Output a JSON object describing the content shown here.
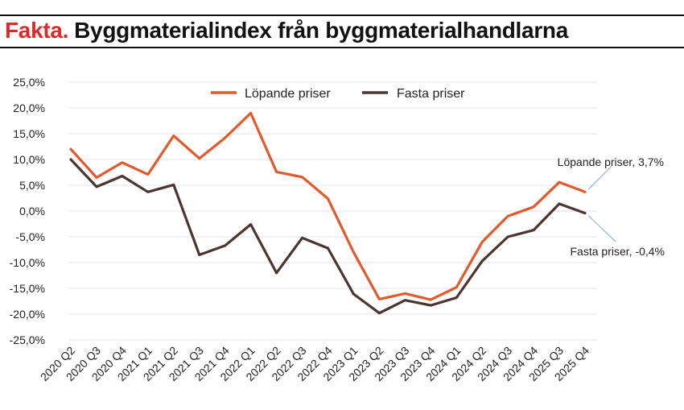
{
  "header": {
    "kicker": "Fakta.",
    "title": "Byggmaterialindex från byggmaterialhandlarna"
  },
  "colors": {
    "kicker": "#d92b2b",
    "lopande": "#e05a2b",
    "fasta": "#4a3530",
    "grid": "#dde3ec"
  },
  "chart_data": {
    "type": "line",
    "categories": [
      "2020 Q2",
      "2020 Q3",
      "2020 Q4",
      "2021 Q1",
      "2021 Q2",
      "2021 Q3",
      "2021 Q4",
      "2022 Q1",
      "2022 Q2",
      "2022 Q3",
      "2022 Q4",
      "2023 Q1",
      "2023 Q2",
      "2023 Q3",
      "2023 Q4",
      "2024 Q1",
      "2024 Q2",
      "2024 Q3",
      "2024 Q4",
      "2025 Q3",
      "2025 Q4"
    ],
    "series": [
      {
        "name": "Löpande priser",
        "color": "#e05a2b",
        "values": [
          12.0,
          6.5,
          9.4,
          7.1,
          14.6,
          10.2,
          14.2,
          19.0,
          7.6,
          6.6,
          2.4,
          -8.0,
          -17.1,
          -16.0,
          -17.2,
          -14.8,
          -6.0,
          -1.0,
          0.8,
          5.6,
          3.7
        ]
      },
      {
        "name": "Fasta priser",
        "color": "#4a3530",
        "values": [
          10.0,
          4.7,
          6.8,
          3.7,
          5.1,
          -8.5,
          -6.7,
          -2.6,
          -12.0,
          -5.2,
          -7.2,
          -16.1,
          -19.8,
          -17.3,
          -18.3,
          -16.8,
          -9.7,
          -5.0,
          -3.7,
          1.4,
          -0.4
        ]
      }
    ],
    "yticks": [
      "25,0%",
      "20,0%",
      "15,0%",
      "10,0%",
      "5,0%",
      "0,0%",
      "-5,0%",
      "-10,0%",
      "-15,0%",
      "-20,0%",
      "-25,0%"
    ],
    "ylim": [
      -25,
      25
    ],
    "grid": true,
    "legend": "top-center",
    "annotations": [
      {
        "text": "Löpande priser, 3,7%",
        "series": 0
      },
      {
        "text": "Fasta priser, -0,4%",
        "series": 1
      }
    ]
  }
}
